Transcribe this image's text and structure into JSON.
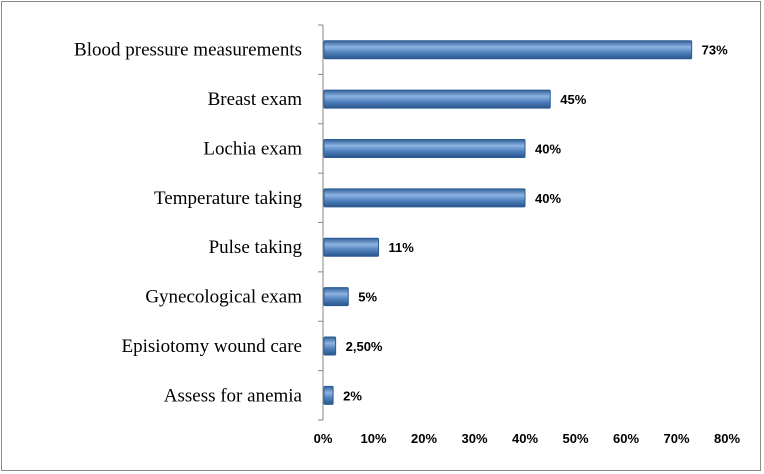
{
  "chart_data": {
    "type": "bar",
    "orientation": "horizontal",
    "categories": [
      "Blood pressure measurements",
      "Breast exam",
      "Lochia exam",
      "Temperature taking",
      "Pulse taking",
      "Gynecological exam",
      "Episiotomy wound  care",
      "Assess for anemia"
    ],
    "values": [
      73,
      45,
      40,
      40,
      11,
      5,
      2.5,
      2
    ],
    "data_labels": [
      "73%",
      "45%",
      "40%",
      "40%",
      "11%",
      "5%",
      "2,50%",
      "2%"
    ],
    "xlim": [
      0,
      80
    ],
    "x_ticks": [
      "0%",
      "10%",
      "20%",
      "30%",
      "40%",
      "50%",
      "60%",
      "70%",
      "80%"
    ],
    "unit": "%",
    "grid": false,
    "legend": "none",
    "colors": {
      "bar": "#4f81bd",
      "bar_dark": "#2c5b93",
      "bar_light": "#8eb4e3",
      "axis": "#868686"
    }
  }
}
